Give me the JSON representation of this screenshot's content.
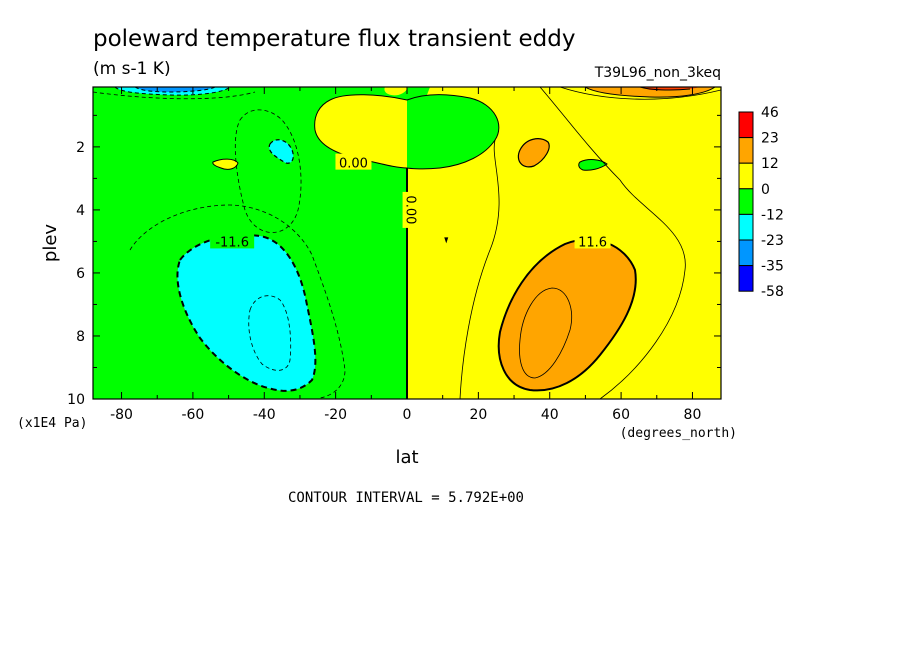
{
  "chart_data": {
    "type": "heatmap",
    "title": "poleward temperature flux transient eddy",
    "subtitle": "(m s-1 K)",
    "dataset_label": "T39L96_non_3keq",
    "xlabel": "lat",
    "x_units": "(degrees_north)",
    "ylabel": "plev",
    "y_units": "(x1E4 Pa)",
    "xlim": [
      -88,
      88
    ],
    "ylim": [
      10,
      0.1
    ],
    "x_ticks": [
      -80,
      -60,
      -40,
      -20,
      0,
      20,
      40,
      60,
      80
    ],
    "x_tick_labels": [
      "-80",
      "-60",
      "-40",
      "-20",
      "0",
      "20",
      "40",
      "60",
      "80"
    ],
    "y_ticks": [
      2,
      4,
      6,
      8,
      10
    ],
    "y_tick_labels": [
      "2",
      "4",
      "6",
      "8",
      "10"
    ],
    "contour_interval_text": "CONTOUR INTERVAL = 5.792E+00",
    "contour_labels": [
      {
        "text": "-11.6",
        "lat": -49,
        "plev": 5.0
      },
      {
        "text": "0.00",
        "lat": -15,
        "plev": 2.5
      },
      {
        "text": "0.00",
        "lat": 1,
        "plev": 4.0
      },
      {
        "text": "11.6",
        "lat": 52,
        "plev": 5.0
      }
    ],
    "colorbar": {
      "levels": [
        "46",
        "23",
        "12",
        "0",
        "-12",
        "-23",
        "-35",
        "-58"
      ],
      "colors": [
        "#ff0000",
        "#ffa500",
        "#ffff00",
        "#00ff00",
        "#00ffff",
        "#0096ff",
        "#0000ff"
      ]
    },
    "regions": [
      {
        "value_range": "0 to 12",
        "color": "#ffff00",
        "lat": [
          0,
          88
        ],
        "plev": [
          0.1,
          10
        ]
      },
      {
        "value_range": "-12 to 0",
        "color": "#00ff00",
        "lat": [
          -88,
          0
        ],
        "plev": [
          0.1,
          10
        ]
      },
      {
        "value_range": "-23 to -12",
        "color": "#00ffff",
        "center_lat": -45,
        "center_plev": 7.5
      },
      {
        "value_range": "12 to 23",
        "color": "#ffa500",
        "center_lat": 40,
        "center_plev": 7.5
      }
    ]
  },
  "colors": {
    "red": "#ff0000",
    "orange": "#ffa500",
    "yellow": "#ffff00",
    "green": "#00ff00",
    "cyan": "#00ffff",
    "blue": "#0096ff",
    "darkblue": "#0000ff"
  }
}
